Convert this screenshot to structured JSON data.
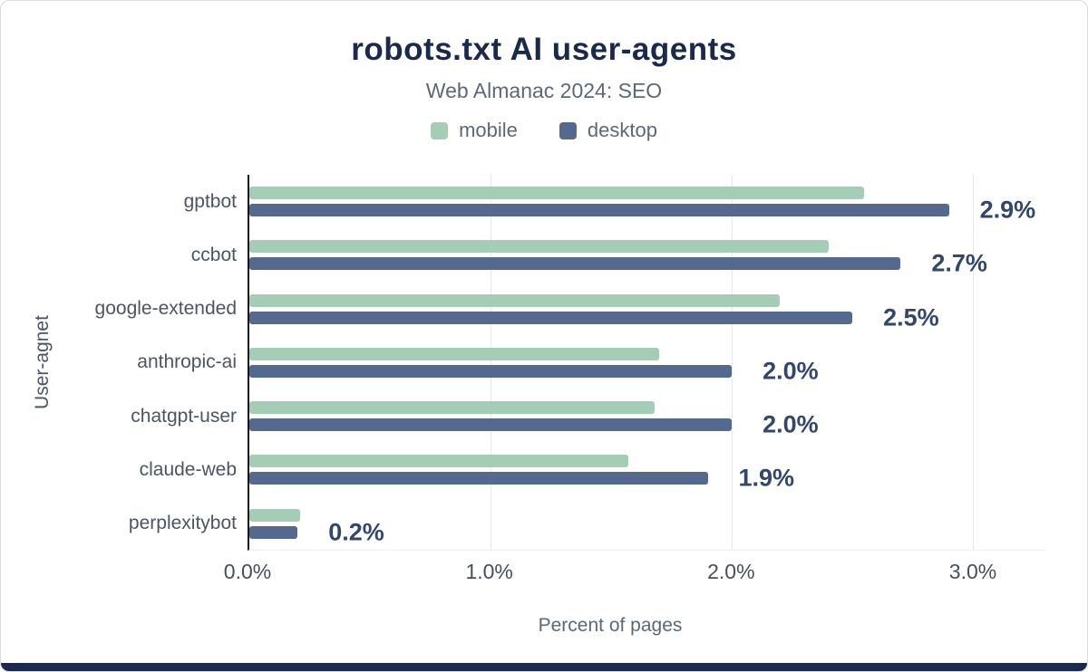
{
  "chart_data": {
    "type": "bar",
    "orientation": "horizontal",
    "title": "robots.txt AI user-agents",
    "subtitle": "Web Almanac 2024: SEO",
    "xlabel": "Percent of pages",
    "ylabel": "User-agnet",
    "categories": [
      "gptbot",
      "ccbot",
      "google-extended",
      "anthropic-ai",
      "chatgpt-user",
      "claude-web",
      "perplexitybot"
    ],
    "series": [
      {
        "name": "mobile",
        "color": "#a5cdb6",
        "values": [
          2.55,
          2.4,
          2.2,
          1.7,
          1.68,
          1.57,
          0.21
        ]
      },
      {
        "name": "desktop",
        "color": "#55688d",
        "values": [
          2.9,
          2.7,
          2.5,
          2.0,
          2.0,
          1.9,
          0.2
        ]
      }
    ],
    "data_labels": [
      "2.9%",
      "2.7%",
      "2.5%",
      "2.0%",
      "2.0%",
      "1.9%",
      "0.2%"
    ],
    "x_ticks": [
      "0.0%",
      "1.0%",
      "2.0%",
      "3.0%"
    ],
    "x_tick_values": [
      0,
      1,
      2,
      3
    ],
    "xlim": [
      0,
      3.3
    ],
    "grid": true,
    "legend_position": "top"
  },
  "colors": {
    "title": "#1b2a4a",
    "subtitle": "#5d6877",
    "data_label": "#33466b",
    "axis_text": "#454f5e",
    "grid": "#e5e9ee",
    "footer_bar": "#1b2a4a"
  }
}
